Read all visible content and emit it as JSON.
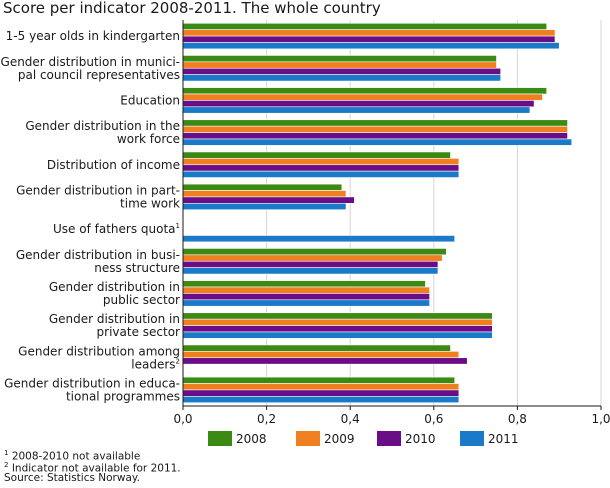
{
  "title": "Score per indicator 2008-2011. The whole country",
  "chart_data": {
    "type": "bar",
    "orientation": "horizontal",
    "categories": [
      [
        "1-5 year olds in kindergarten"
      ],
      [
        "Gender distribution in munici-",
        "pal council representatives"
      ],
      [
        "Education"
      ],
      [
        "Gender distribution in the",
        "work force"
      ],
      [
        "Distribution of income"
      ],
      [
        "Gender distribution in part-",
        "time work"
      ],
      [
        "Use of fathers quota",
        "1"
      ],
      [
        "Gender distribution in busi-",
        "ness structure"
      ],
      [
        "Gender distribution in",
        "public sector"
      ],
      [
        "Gender distribution in",
        "private sector"
      ],
      [
        "Gender distribution among",
        "leaders",
        "2"
      ],
      [
        "Gender distribution in educa-",
        "tional programmes"
      ]
    ],
    "series": [
      {
        "name": "2008",
        "color": "#3a8a14",
        "values": [
          0.87,
          0.75,
          0.87,
          0.92,
          0.64,
          0.38,
          null,
          0.63,
          0.58,
          0.74,
          0.64,
          0.65
        ]
      },
      {
        "name": "2009",
        "color": "#f07f20",
        "values": [
          0.89,
          0.75,
          0.86,
          0.92,
          0.66,
          0.39,
          null,
          0.62,
          0.59,
          0.74,
          0.66,
          0.66
        ]
      },
      {
        "name": "2010",
        "color": "#6a0e88",
        "values": [
          0.89,
          0.76,
          0.84,
          0.92,
          0.66,
          0.41,
          null,
          0.61,
          0.59,
          0.74,
          0.68,
          0.66
        ]
      },
      {
        "name": "2011",
        "color": "#1a7ac8",
        "values": [
          0.9,
          0.76,
          0.83,
          0.93,
          0.66,
          0.39,
          0.65,
          0.61,
          0.59,
          0.74,
          null,
          0.66
        ]
      }
    ],
    "xlim": [
      0,
      1
    ],
    "xticks": [
      "0,0",
      "0,2",
      "0,4",
      "0,6",
      "0,8",
      "1,0"
    ],
    "grid": "vertical",
    "legend_position": "bottom"
  },
  "footnotes": [
    {
      "mark": "1",
      "text": "2008-2010 not available"
    },
    {
      "mark": "2",
      "text": "Indicator not available for 2011."
    },
    {
      "mark": "",
      "text": "Source: Statistics Norway."
    }
  ]
}
